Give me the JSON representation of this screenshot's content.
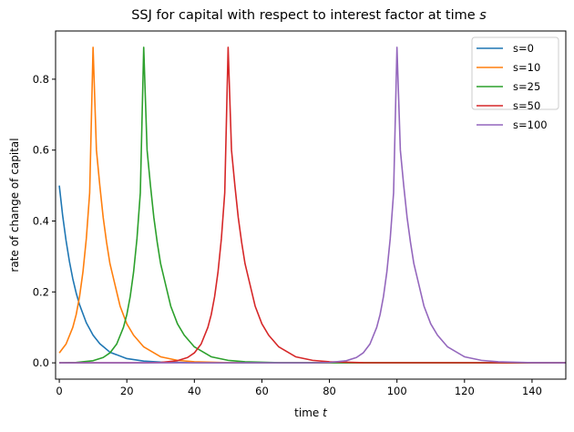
{
  "chart_data": {
    "type": "line",
    "title": "SSJ for capital with respect to interest factor at time s",
    "title_prefix": "SSJ for capital with respect to interest factor at time ",
    "title_var": "s",
    "xlabel_prefix": "time ",
    "xlabel_var": "t",
    "ylabel": "rate of change of capital",
    "xlim": [
      -1.1,
      150
    ],
    "ylim": [
      -0.046,
      0.936
    ],
    "xticks": [
      0,
      20,
      40,
      60,
      80,
      100,
      120,
      140
    ],
    "xtick_labels": [
      "0",
      "20",
      "40",
      "60",
      "80",
      "100",
      "120",
      "140"
    ],
    "yticks": [
      0.0,
      0.2,
      0.4,
      0.6,
      0.8
    ],
    "ytick_labels": [
      "0.0",
      "0.2",
      "0.4",
      "0.6",
      "0.8"
    ],
    "grid": false,
    "legend": "top-right",
    "series": [
      {
        "name": "s=0",
        "color": "#1f77b4",
        "x": [
          0,
          1,
          2,
          3,
          4,
          5,
          6,
          8,
          10,
          12,
          15,
          20,
          25,
          30,
          40,
          60,
          150
        ],
        "y": [
          0.5,
          0.415,
          0.345,
          0.286,
          0.237,
          0.197,
          0.164,
          0.113,
          0.078,
          0.054,
          0.03,
          0.012,
          0.005,
          0.002,
          0.0003,
          0,
          0
        ]
      },
      {
        "name": "s=10",
        "color": "#ff7f0e",
        "x": [
          0,
          2,
          4,
          5,
          6,
          7,
          8,
          9,
          10,
          11,
          12,
          13,
          14,
          15,
          16,
          18,
          20,
          22,
          25,
          30,
          35,
          40,
          50,
          150
        ],
        "y": [
          0.028,
          0.053,
          0.1,
          0.136,
          0.187,
          0.256,
          0.35,
          0.48,
          0.89,
          0.6,
          0.5,
          0.41,
          0.34,
          0.28,
          0.24,
          0.16,
          0.11,
          0.078,
          0.045,
          0.017,
          0.007,
          0.003,
          0.0005,
          0
        ]
      },
      {
        "name": "s=25",
        "color": "#2ca02c",
        "x": [
          0,
          5,
          10,
          13,
          15,
          17,
          19,
          20,
          21,
          22,
          23,
          24,
          25,
          26,
          27,
          28,
          29,
          30,
          31,
          33,
          35,
          37,
          40,
          45,
          50,
          55,
          65,
          150
        ],
        "y": [
          0.0002,
          0.001,
          0.006,
          0.015,
          0.028,
          0.053,
          0.1,
          0.136,
          0.187,
          0.256,
          0.35,
          0.48,
          0.89,
          0.6,
          0.5,
          0.41,
          0.34,
          0.28,
          0.24,
          0.16,
          0.11,
          0.078,
          0.045,
          0.017,
          0.007,
          0.003,
          0.0005,
          0
        ]
      },
      {
        "name": "s=50",
        "color": "#d62728",
        "x": [
          0,
          25,
          30,
          35,
          38,
          40,
          42,
          44,
          45,
          46,
          47,
          48,
          49,
          50,
          51,
          52,
          53,
          54,
          55,
          56,
          58,
          60,
          62,
          65,
          70,
          75,
          80,
          90,
          150
        ],
        "y": [
          0,
          0.0002,
          0.001,
          0.006,
          0.015,
          0.028,
          0.053,
          0.1,
          0.136,
          0.187,
          0.256,
          0.35,
          0.48,
          0.89,
          0.6,
          0.5,
          0.41,
          0.34,
          0.28,
          0.24,
          0.16,
          0.11,
          0.078,
          0.045,
          0.017,
          0.007,
          0.003,
          0.0005,
          0
        ]
      },
      {
        "name": "s=100",
        "color": "#9467bd",
        "x": [
          0,
          75,
          80,
          85,
          88,
          90,
          92,
          94,
          95,
          96,
          97,
          98,
          99,
          100,
          101,
          102,
          103,
          104,
          105,
          106,
          108,
          110,
          112,
          115,
          120,
          125,
          130,
          140,
          150
        ],
        "y": [
          0,
          0.0002,
          0.001,
          0.006,
          0.015,
          0.028,
          0.053,
          0.1,
          0.136,
          0.187,
          0.256,
          0.35,
          0.48,
          0.89,
          0.6,
          0.5,
          0.41,
          0.34,
          0.28,
          0.24,
          0.16,
          0.11,
          0.078,
          0.045,
          0.017,
          0.007,
          0.003,
          0.0005,
          0
        ]
      }
    ]
  }
}
